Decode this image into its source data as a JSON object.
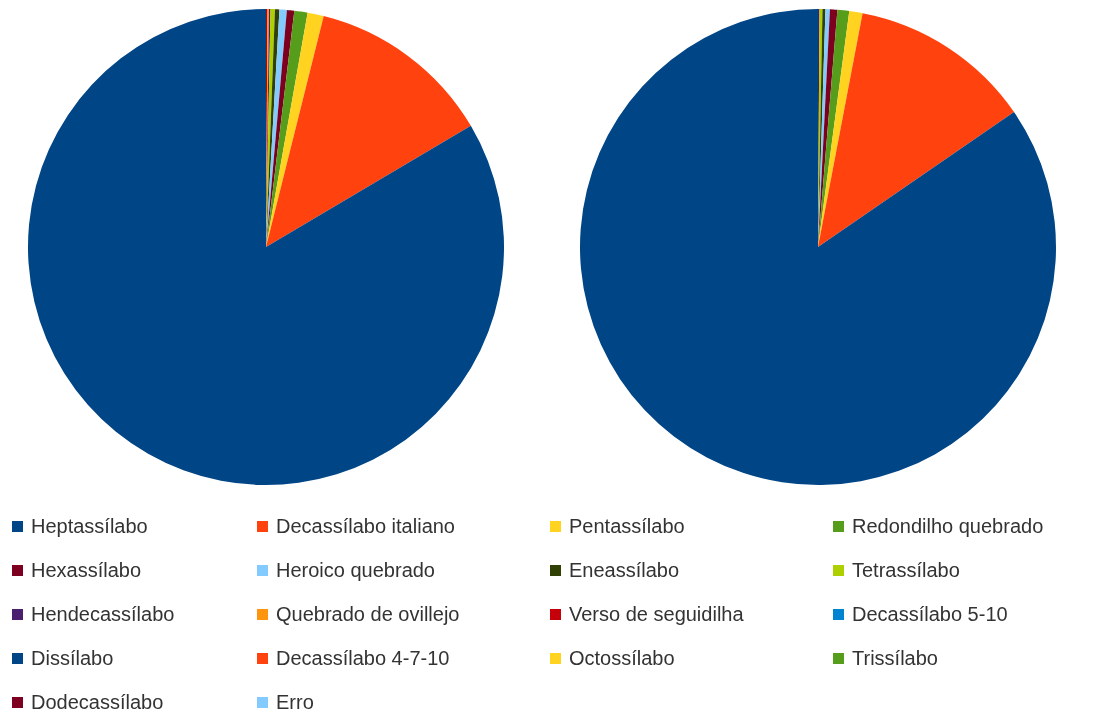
{
  "chart_data": [
    {
      "type": "pie",
      "legend": "bottom",
      "categories": [
        "Heptassílabo",
        "Decassílabo italiano",
        "Pentassílabo",
        "Redondilho quebrado",
        "Hexassílabo",
        "Heroico quebrado",
        "Eneassílabo",
        "Tetrassílabo",
        "Hendecassílabo",
        "Quebrado de ovillejo",
        "Verso de seguidilha",
        "Decassílabo 5-10",
        "Dissílabo",
        "Decassílabo 4-7-10",
        "Octossílabo",
        "Trissílabo",
        "Dodecassílabo",
        "Erro"
      ],
      "values": [
        83.5,
        12.6,
        1.1,
        0.9,
        0.5,
        0.5,
        0.3,
        0.3,
        0.1,
        0.1,
        0.1,
        0,
        0,
        0,
        0,
        0,
        0,
        0
      ],
      "colors": [
        "#004586",
        "#ff420e",
        "#ffd320",
        "#579d1c",
        "#7e0021",
        "#83caff",
        "#314004",
        "#aecf00",
        "#4b1f6f",
        "#ff950e",
        "#c5000b",
        "#0084d1",
        "#004586",
        "#ff420e",
        "#ffd320",
        "#579d1c",
        "#7e0021",
        "#83caff"
      ]
    },
    {
      "type": "pie",
      "legend": false,
      "categories": [
        null,
        null,
        null,
        null,
        null,
        null,
        null,
        null,
        null,
        null,
        null,
        null,
        null,
        null,
        null,
        null,
        null,
        null
      ],
      "values": [
        84.6,
        12.4,
        0.9,
        0.8,
        0.5,
        0.3,
        0.2,
        0.2,
        0.1,
        0,
        0,
        0,
        0,
        0,
        0,
        0,
        0,
        0
      ],
      "colors": [
        "#004586",
        "#ff420e",
        "#ffd320",
        "#579d1c",
        "#7e0021",
        "#83caff",
        "#314004",
        "#aecf00",
        "#4b1f6f",
        "#ff950e",
        "#c5000b",
        "#0084d1",
        "#004586",
        "#ff420e",
        "#ffd320",
        "#579d1c",
        "#7e0021",
        "#83caff"
      ]
    }
  ]
}
